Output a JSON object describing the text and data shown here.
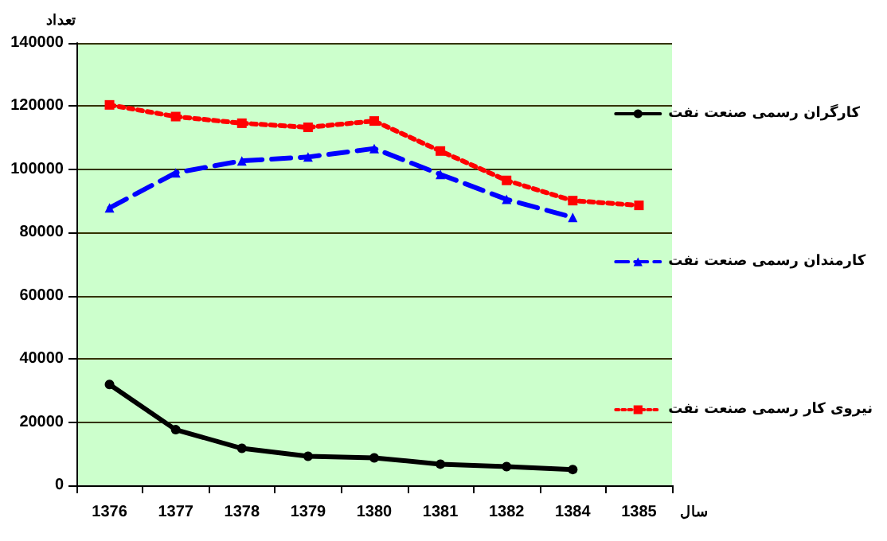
{
  "chart_data": {
    "type": "line",
    "xlabel": "سال",
    "ylabel": "تعداد",
    "categories": [
      "1376",
      "1377",
      "1378",
      "1379",
      "1380",
      "1381",
      "1382",
      "1384",
      "1385"
    ],
    "ylim": [
      0,
      140000
    ],
    "yticks": [
      0,
      20000,
      40000,
      60000,
      80000,
      100000,
      120000,
      140000
    ],
    "grid": "y",
    "legend": "right",
    "series": [
      {
        "name": "کارگران رسمی صنعت نفت",
        "color": "#000000",
        "marker": "circle",
        "line_style": "solid",
        "values": [
          31900,
          17600,
          11700,
          9200,
          8700,
          6700,
          5900,
          5000,
          null
        ]
      },
      {
        "name": "کارمندان رسمی صنعت نفت",
        "color": "#0000ff",
        "marker": "triangle",
        "line_style": "dashed",
        "values": [
          87800,
          98900,
          102700,
          103900,
          106600,
          98400,
          90500,
          84800,
          null
        ]
      },
      {
        "name": "نیروی کار رسمی صنعت نفت",
        "color": "#ff0000",
        "marker": "square",
        "line_style": "dotted",
        "values": [
          120400,
          116700,
          114600,
          113300,
          115300,
          105800,
          96500,
          90100,
          88600
        ]
      }
    ]
  }
}
